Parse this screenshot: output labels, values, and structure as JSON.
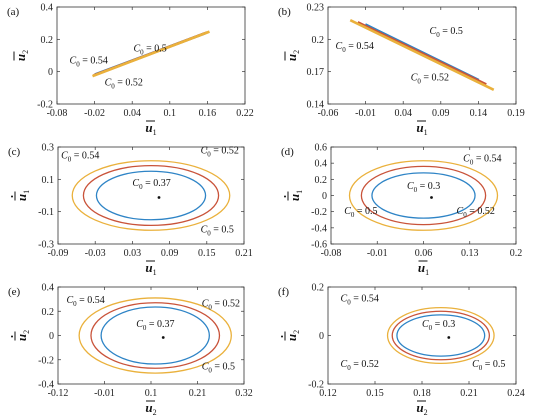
{
  "colors": {
    "blue": "#2e84c6",
    "red": "#c9533a",
    "orange": "#eab13c"
  },
  "chart_data": [
    {
      "type": "line",
      "panel_label": "(a)",
      "xlabel": "u1",
      "ylabel": "u2",
      "xlim": [
        -0.08,
        0.22
      ],
      "ylim": [
        -0.2,
        0.4
      ],
      "xticks": [
        "-0.08",
        "-0.02",
        "0.04",
        "0.1",
        "0.16",
        "0.22"
      ],
      "yticks": [
        "-0.2",
        "0",
        "0.2",
        "0.4"
      ],
      "series": [
        {
          "name": "C0 = 0.5",
          "color": "#2e84c6",
          "points": [
            [
              -0.018,
              -0.02
            ],
            [
              0.155,
              0.24
            ]
          ]
        },
        {
          "name": "C0 = 0.52",
          "color": "#c9533a",
          "points": [
            [
              -0.02,
              -0.025
            ],
            [
              0.158,
              0.245
            ]
          ]
        },
        {
          "name": "C0 = 0.54",
          "color": "#eab13c",
          "points": [
            [
              -0.022,
              -0.03
            ],
            [
              0.162,
              0.25
            ]
          ]
        }
      ],
      "annotations": [
        {
          "text": "C0 = 0.54",
          "at": [
            -0.06,
            0.05
          ]
        },
        {
          "text": "C0 = 0.5",
          "at": [
            0.042,
            0.125
          ]
        },
        {
          "text": "C0 = 0.52",
          "at": [
            -0.004,
            -0.085
          ]
        }
      ]
    },
    {
      "type": "line",
      "panel_label": "(b)",
      "xlabel": "u1",
      "ylabel": "u2",
      "xlim": [
        -0.06,
        0.19
      ],
      "ylim": [
        0.14,
        0.23
      ],
      "xticks": [
        "-0.06",
        "-0.01",
        "0.04",
        "0.09",
        "0.14",
        "0.19"
      ],
      "yticks": [
        "0.14",
        "0.17",
        "0.2",
        "0.23"
      ],
      "series": [
        {
          "name": "C0 = 0.5",
          "color": "#2e84c6",
          "points": [
            [
              -0.01,
              0.213
            ],
            [
              0.14,
              0.163
            ]
          ]
        },
        {
          "name": "C0 = 0.52",
          "color": "#c9533a",
          "points": [
            [
              -0.02,
              0.215
            ],
            [
              0.15,
              0.159
            ]
          ]
        },
        {
          "name": "C0 = 0.54",
          "color": "#eab13c",
          "points": [
            [
              -0.03,
              0.217
            ],
            [
              0.16,
              0.154
            ]
          ]
        }
      ],
      "annotations": [
        {
          "text": "C0 = 0.5",
          "at": [
            0.075,
            0.205
          ]
        },
        {
          "text": "C0 = 0.54",
          "at": [
            -0.05,
            0.191
          ]
        },
        {
          "text": "C0 = 0.52",
          "at": [
            0.05,
            0.162
          ]
        }
      ]
    },
    {
      "type": "line",
      "panel_label": "(c)",
      "xlabel": "u1",
      "ylabel": "u1 (dot)",
      "xlim": [
        -0.09,
        0.21
      ],
      "ylim": [
        -0.3,
        0.3
      ],
      "xticks": [
        "-0.09",
        "-0.03",
        "0.03",
        "0.09",
        "0.15",
        "0.21"
      ],
      "yticks": [
        "-0.3",
        "-0.1",
        "0.1",
        "0.3"
      ],
      "ellipses": [
        {
          "name": "C0 = 0.37",
          "dot": true,
          "cx": 0.06,
          "cy": 0.0,
          "rx": 0.0,
          "ry": 0.0
        },
        {
          "name": "C0 = 0.5",
          "color": "#2e84c6",
          "cx": 0.06,
          "cy": 0.0,
          "rx": 0.088,
          "ry": 0.15
        },
        {
          "name": "C0 = 0.52",
          "color": "#c9533a",
          "cx": 0.06,
          "cy": 0.0,
          "rx": 0.109,
          "ry": 0.185
        },
        {
          "name": "C0 = 0.54",
          "color": "#eab13c",
          "cx": 0.06,
          "cy": 0.0,
          "rx": 0.127,
          "ry": 0.215
        }
      ],
      "annotations": [
        {
          "text": "C0 = 0.54",
          "at": [
            -0.085,
            0.23
          ]
        },
        {
          "text": "C0 = 0.52",
          "at": [
            0.14,
            0.26
          ]
        },
        {
          "text": "C0 = 0.37",
          "at": [
            0.03,
            0.06
          ]
        },
        {
          "text": "C0 = 0.5",
          "at": [
            0.14,
            -0.23
          ]
        }
      ]
    },
    {
      "type": "line",
      "panel_label": "(d)",
      "xlabel": "u1",
      "ylabel": "u1 (dot)",
      "xlim": [
        -0.08,
        0.2
      ],
      "ylim": [
        -0.6,
        0.6
      ],
      "xticks": [
        "-0.08",
        "-0.01",
        "0.06",
        "0.13",
        "0.2"
      ],
      "yticks": [
        "-0.6",
        "-0.4",
        "-0.2",
        "0",
        "0.2",
        "0.4",
        "0.6"
      ],
      "ellipses": [
        {
          "name": "C0 = 0.3",
          "dot": true,
          "cx": 0.06,
          "cy": 0.0,
          "rx": 0.0,
          "ry": 0.0
        },
        {
          "name": "C0 = 0.5",
          "color": "#2e84c6",
          "cx": 0.06,
          "cy": 0.0,
          "rx": 0.078,
          "ry": 0.28
        },
        {
          "name": "C0 = 0.52",
          "color": "#c9533a",
          "cx": 0.06,
          "cy": 0.0,
          "rx": 0.094,
          "ry": 0.36
        },
        {
          "name": "C0 = 0.54",
          "color": "#eab13c",
          "cx": 0.06,
          "cy": 0.0,
          "rx": 0.112,
          "ry": 0.43
        }
      ],
      "annotations": [
        {
          "text": "C0 = 0.54",
          "at": [
            0.12,
            0.42
          ]
        },
        {
          "text": "C0 = 0.3",
          "at": [
            0.035,
            0.08
          ]
        },
        {
          "text": "C0 = 0.5",
          "at": [
            -0.06,
            -0.23
          ]
        },
        {
          "text": "C0 = 0.52",
          "at": [
            0.11,
            -0.23
          ]
        }
      ]
    },
    {
      "type": "line",
      "panel_label": "(e)",
      "xlabel": "u2",
      "ylabel": "u2 (dot)",
      "xlim": [
        -0.12,
        0.32
      ],
      "ylim": [
        -0.4,
        0.4
      ],
      "xticks": [
        "-0.12",
        "-0.01",
        "0.1",
        "0.21",
        "0.32"
      ],
      "yticks": [
        "-0.4",
        "-0.2",
        "0",
        "0.2",
        "0.4"
      ],
      "ellipses": [
        {
          "name": "C0 = 0.37",
          "dot": true,
          "cx": 0.11,
          "cy": 0.0,
          "rx": 0.0,
          "ry": 0.0
        },
        {
          "name": "C0 = 0.5",
          "color": "#2e84c6",
          "cx": 0.11,
          "cy": 0.0,
          "rx": 0.128,
          "ry": 0.235
        },
        {
          "name": "C0 = 0.52",
          "color": "#c9533a",
          "cx": 0.11,
          "cy": 0.0,
          "rx": 0.152,
          "ry": 0.27
        },
        {
          "name": "C0 = 0.54",
          "color": "#eab13c",
          "cx": 0.11,
          "cy": 0.0,
          "rx": 0.18,
          "ry": 0.31
        }
      ],
      "annotations": [
        {
          "text": "C0 = 0.54",
          "at": [
            -0.1,
            0.27
          ]
        },
        {
          "text": "C0 = 0.52",
          "at": [
            0.22,
            0.24
          ]
        },
        {
          "text": "C0 = 0.37",
          "at": [
            0.065,
            0.07
          ]
        },
        {
          "text": "C0 = 0.5",
          "at": [
            0.22,
            -0.28
          ]
        }
      ]
    },
    {
      "type": "line",
      "panel_label": "(f)",
      "xlabel": "u2",
      "ylabel": "u2 (dot)",
      "xlim": [
        0.12,
        0.24
      ],
      "ylim": [
        -0.2,
        0.2
      ],
      "xticks": [
        "0.12",
        "0.15",
        "0.18",
        "0.21",
        "0.24"
      ],
      "yticks": [
        "-0.2",
        "0",
        "0.2"
      ],
      "ellipses": [
        {
          "name": "C0 = 0.3",
          "dot": true,
          "cx": 0.192,
          "cy": 0.0,
          "rx": 0.0,
          "ry": 0.0
        },
        {
          "name": "C0 = 0.5",
          "color": "#2e84c6",
          "cx": 0.192,
          "cy": 0.0,
          "rx": 0.028,
          "ry": 0.085
        },
        {
          "name": "C0 = 0.52",
          "color": "#c9533a",
          "cx": 0.192,
          "cy": 0.0,
          "rx": 0.031,
          "ry": 0.1
        },
        {
          "name": "C0 = 0.54",
          "color": "#eab13c",
          "cx": 0.192,
          "cy": 0.0,
          "rx": 0.034,
          "ry": 0.115
        }
      ],
      "annotations": [
        {
          "text": "C0 = 0.54",
          "at": [
            0.128,
            0.14
          ]
        },
        {
          "text": "C0 = 0.3",
          "at": [
            0.18,
            0.035
          ]
        },
        {
          "text": "C0 = 0.52",
          "at": [
            0.128,
            -0.13
          ]
        },
        {
          "text": "C0 = 0.5",
          "at": [
            0.212,
            -0.13
          ]
        }
      ]
    }
  ]
}
